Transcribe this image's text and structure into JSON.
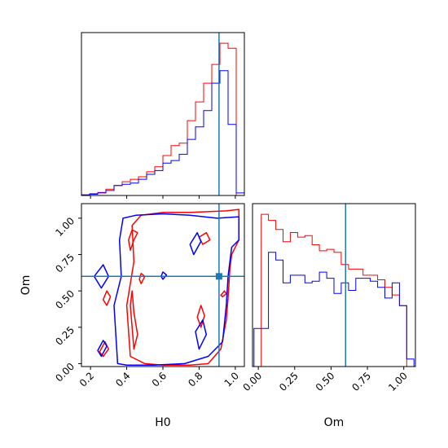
{
  "chart_data": [
    {
      "type": "histogram",
      "panel": "H0 marginal",
      "truth_line": 0.91,
      "bin_edges": [
        0.15,
        0.195,
        0.24,
        0.285,
        0.33,
        0.375,
        0.42,
        0.465,
        0.51,
        0.555,
        0.6,
        0.645,
        0.69,
        0.735,
        0.78,
        0.825,
        0.87,
        0.915,
        0.96,
        1.005,
        1.05
      ],
      "series": [
        {
          "color": "#ff0000",
          "values": [
            0.5,
            1.5,
            2.5,
            5.0,
            8.0,
            11.0,
            13.0,
            15.0,
            19.0,
            23.0,
            32.0,
            40.0,
            42.0,
            60.0,
            75.0,
            90.0,
            105.0,
            122.0,
            118.0,
            0.0
          ]
        },
        {
          "color": "#0000ff",
          "values": [
            0.5,
            1.0,
            2.0,
            4.0,
            8.0,
            9.0,
            10.0,
            13.0,
            17.0,
            20.0,
            26.0,
            28.0,
            33.0,
            45.0,
            55.0,
            68.0,
            90.0,
            100.0,
            57.0,
            2.0
          ]
        }
      ]
    },
    {
      "type": "contour",
      "panel": "H0 vs Om joint",
      "xlabel": "H0",
      "ylabel": "Om",
      "xlim": [
        0.15,
        1.05
      ],
      "ylim": [
        -0.02,
        1.1
      ],
      "xticks": [
        "0.2",
        "0.4",
        "0.6",
        "0.8",
        "1.0"
      ],
      "yticks": [
        "0.00",
        "0.25",
        "0.50",
        "0.75",
        "1.00"
      ],
      "truth": {
        "H0": 0.91,
        "Om": 0.6
      },
      "series": [
        {
          "color": "#ff0000",
          "contours": [
            [
              [
                0.42,
                0.05
              ],
              [
                0.4,
                0.4
              ],
              [
                0.44,
                0.7
              ],
              [
                0.43,
                0.95
              ],
              [
                0.48,
                1.02
              ],
              [
                0.6,
                1.04
              ],
              [
                0.75,
                1.04
              ],
              [
                0.95,
                1.05
              ],
              [
                1.02,
                1.06
              ],
              [
                1.02,
                0.85
              ],
              [
                0.98,
                0.75
              ],
              [
                0.97,
                0.65
              ],
              [
                0.96,
                0.45
              ],
              [
                0.95,
                0.3
              ],
              [
                0.92,
                0.1
              ],
              [
                0.85,
                0.0
              ],
              [
                0.75,
                -0.01
              ],
              [
                0.6,
                -0.01
              ],
              [
                0.5,
                0.0
              ],
              [
                0.42,
                0.05
              ]
            ],
            [
              [
                0.43,
                0.5
              ],
              [
                0.44,
                0.35
              ],
              [
                0.46,
                0.2
              ],
              [
                0.44,
                0.1
              ],
              [
                0.43,
                0.25
              ],
              [
                0.42,
                0.4
              ],
              [
                0.43,
                0.5
              ]
            ],
            [
              [
                0.42,
                0.78
              ],
              [
                0.44,
                0.85
              ],
              [
                0.46,
                0.9
              ],
              [
                0.43,
                0.92
              ],
              [
                0.41,
                0.85
              ],
              [
                0.42,
                0.78
              ]
            ],
            [
              [
                0.48,
                0.55
              ],
              [
                0.5,
                0.6
              ],
              [
                0.48,
                0.62
              ],
              [
                0.47,
                0.58
              ],
              [
                0.48,
                0.55
              ]
            ],
            [
              [
                0.27,
                0.05
              ],
              [
                0.3,
                0.1
              ],
              [
                0.28,
                0.15
              ],
              [
                0.25,
                0.08
              ],
              [
                0.27,
                0.05
              ]
            ],
            [
              [
                0.29,
                0.4
              ],
              [
                0.31,
                0.46
              ],
              [
                0.29,
                0.5
              ],
              [
                0.27,
                0.44
              ],
              [
                0.29,
                0.4
              ]
            ],
            [
              [
                0.81,
                0.25
              ],
              [
                0.83,
                0.33
              ],
              [
                0.81,
                0.4
              ],
              [
                0.79,
                0.32
              ],
              [
                0.81,
                0.25
              ]
            ],
            [
              [
                0.93,
                0.46
              ],
              [
                0.95,
                0.48
              ],
              [
                0.94,
                0.5
              ],
              [
                0.92,
                0.47
              ],
              [
                0.93,
                0.46
              ]
            ],
            [
              [
                0.82,
                0.82
              ],
              [
                0.86,
                0.85
              ],
              [
                0.84,
                0.9
              ],
              [
                0.8,
                0.87
              ],
              [
                0.82,
                0.82
              ]
            ]
          ]
        },
        {
          "color": "#0000ff",
          "contours": [
            [
              [
                0.35,
                0.0
              ],
              [
                0.34,
                0.2
              ],
              [
                0.33,
                0.4
              ],
              [
                0.37,
                0.6
              ],
              [
                0.36,
                0.85
              ],
              [
                0.38,
                1.0
              ],
              [
                0.45,
                1.02
              ],
              [
                0.6,
                1.03
              ],
              [
                0.75,
                1.02
              ],
              [
                0.9,
                1.0
              ],
              [
                1.02,
                1.01
              ],
              [
                1.02,
                0.85
              ],
              [
                0.98,
                0.8
              ],
              [
                0.96,
                0.6
              ],
              [
                0.95,
                0.4
              ],
              [
                0.93,
                0.15
              ],
              [
                0.85,
                0.05
              ],
              [
                0.72,
                0.0
              ],
              [
                0.55,
                -0.01
              ],
              [
                0.4,
                -0.01
              ],
              [
                0.35,
                0.0
              ]
            ],
            [
              [
                0.22,
                0.6
              ],
              [
                0.27,
                0.68
              ],
              [
                0.3,
                0.6
              ],
              [
                0.26,
                0.52
              ],
              [
                0.22,
                0.6
              ]
            ],
            [
              [
                0.8,
                0.1
              ],
              [
                0.84,
                0.2
              ],
              [
                0.82,
                0.3
              ],
              [
                0.78,
                0.22
              ],
              [
                0.8,
                0.1
              ]
            ],
            [
              [
                0.77,
                0.75
              ],
              [
                0.81,
                0.84
              ],
              [
                0.79,
                0.9
              ],
              [
                0.75,
                0.82
              ],
              [
                0.77,
                0.75
              ]
            ],
            [
              [
                0.26,
                0.05
              ],
              [
                0.29,
                0.12
              ],
              [
                0.27,
                0.16
              ],
              [
                0.24,
                0.09
              ],
              [
                0.26,
                0.05
              ]
            ],
            [
              [
                0.6,
                0.58
              ],
              [
                0.62,
                0.61
              ],
              [
                0.6,
                0.63
              ],
              [
                0.59,
                0.6
              ],
              [
                0.6,
                0.58
              ]
            ]
          ]
        }
      ]
    },
    {
      "type": "histogram",
      "panel": "Om marginal",
      "xlabel": "Om",
      "truth_line": 0.6,
      "xlim": [
        -0.04,
        1.08
      ],
      "xticks": [
        "0.00",
        "0.25",
        "0.50",
        "0.75",
        "1.00"
      ],
      "bin_edges": [
        -0.03,
        0.02,
        0.07,
        0.12,
        0.17,
        0.22,
        0.27,
        0.32,
        0.37,
        0.42,
        0.47,
        0.52,
        0.57,
        0.62,
        0.67,
        0.72,
        0.77,
        0.82,
        0.87,
        0.92,
        0.97,
        1.02,
        1.07
      ],
      "series": [
        {
          "color": "#ff0000",
          "values": [
            0,
            100,
            96,
            90,
            82,
            88,
            85,
            86,
            80,
            76,
            77,
            75,
            67,
            64,
            64,
            60,
            60,
            57,
            52,
            47,
            40,
            0
          ]
        },
        {
          "color": "#0000ff",
          "values": [
            25,
            25,
            75,
            70,
            55,
            60,
            60,
            55,
            56,
            62,
            58,
            48,
            55,
            50,
            58,
            58,
            56,
            52,
            45,
            55,
            40,
            5
          ]
        }
      ]
    }
  ]
}
